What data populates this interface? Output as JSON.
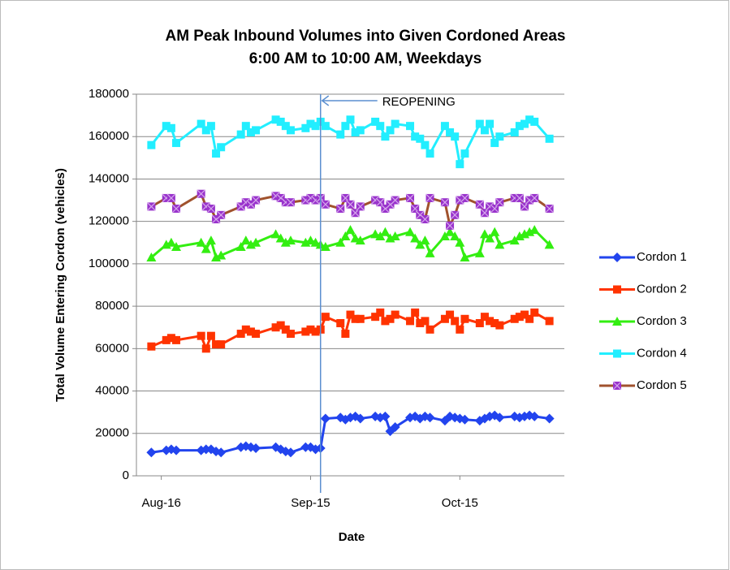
{
  "chart_data": {
    "type": "line",
    "title": [
      "AM Peak Inbound Volumes into Given Cordoned Areas",
      "6:00 AM to 10:00 AM, Weekdays"
    ],
    "x_label": "Date",
    "y_label": "Total Volume Entering Cordon (vehicles)",
    "x": [
      "08-14",
      "08-17",
      "08-18",
      "08-19",
      "08-24",
      "08-25",
      "08-26",
      "08-27",
      "08-28",
      "09-01",
      "09-02",
      "09-03",
      "09-04",
      "09-08",
      "09-09",
      "09-10",
      "09-11",
      "09-14",
      "09-15",
      "09-16",
      "09-17",
      "09-18",
      "09-21",
      "09-22",
      "09-23",
      "09-24",
      "09-25",
      "09-28",
      "09-29",
      "09-30",
      "10-01",
      "10-02",
      "10-05",
      "10-06",
      "10-07",
      "10-08",
      "10-09",
      "10-12",
      "10-13",
      "10-14",
      "10-15",
      "10-16",
      "10-19",
      "10-20",
      "10-21",
      "10-22",
      "10-23",
      "10-26",
      "10-27",
      "10-28",
      "10-29",
      "10-30",
      "11-02"
    ],
    "series": [
      {
        "name": "Cordon 1",
        "color": "#2244ee",
        "marker": "diamond",
        "values": [
          11000,
          12000,
          12500,
          12000,
          12000,
          12500,
          12500,
          11500,
          11000,
          13500,
          14000,
          13500,
          13000,
          13500,
          12500,
          11500,
          11000,
          13500,
          13500,
          12500,
          13000,
          27000,
          27500,
          26500,
          27500,
          28000,
          27000,
          28000,
          27500,
          28000,
          21000,
          23000,
          27500,
          28000,
          27000,
          28000,
          27500,
          26000,
          28000,
          27500,
          27000,
          26500,
          26000,
          27000,
          28000,
          28500,
          27500,
          28000,
          27500,
          28000,
          28500,
          28000,
          27000
        ]
      },
      {
        "name": "Cordon 2",
        "color": "#ff3300",
        "marker": "square",
        "values": [
          61000,
          64000,
          65000,
          64000,
          66000,
          60000,
          66000,
          62000,
          62000,
          67000,
          69000,
          68000,
          67000,
          70000,
          71000,
          69000,
          67000,
          68000,
          69000,
          68000,
          69000,
          75000,
          72000,
          67000,
          76000,
          74000,
          74000,
          75000,
          77000,
          73000,
          74000,
          76000,
          73000,
          77000,
          72000,
          73000,
          69000,
          74000,
          76000,
          73000,
          69000,
          74000,
          72000,
          75000,
          73000,
          72000,
          71000,
          74000,
          75000,
          76000,
          74000,
          77000,
          73000
        ]
      },
      {
        "name": "Cordon 3",
        "color": "#33ee11",
        "marker": "triangle",
        "values": [
          103000,
          109000,
          110000,
          108000,
          110000,
          107000,
          111000,
          103000,
          104000,
          108000,
          111000,
          109000,
          110000,
          114000,
          112000,
          110000,
          111000,
          110000,
          111000,
          110000,
          109000,
          108000,
          110000,
          113000,
          116000,
          112000,
          111000,
          114000,
          113000,
          115000,
          112000,
          113000,
          115000,
          112000,
          109000,
          111000,
          105000,
          113000,
          115000,
          113000,
          110000,
          103000,
          105000,
          114000,
          112000,
          115000,
          109000,
          111000,
          113000,
          114000,
          115000,
          116000,
          109000
        ]
      },
      {
        "name": "Cordon 4",
        "color": "#22eeff",
        "marker": "square",
        "values": [
          156000,
          165000,
          164000,
          157000,
          166000,
          163000,
          165000,
          152000,
          155000,
          161000,
          165000,
          162000,
          163000,
          168000,
          167000,
          165000,
          163000,
          164000,
          166000,
          165000,
          167000,
          165000,
          161000,
          165000,
          168000,
          162000,
          163000,
          167000,
          165000,
          160000,
          163000,
          166000,
          165000,
          160000,
          159000,
          156000,
          152000,
          165000,
          162000,
          160000,
          147000,
          152000,
          166000,
          163000,
          166000,
          157000,
          160000,
          162000,
          165000,
          166000,
          168000,
          167000,
          159000
        ]
      },
      {
        "name": "Cordon 5",
        "color": "#9933cc",
        "line_color": "#a0522d",
        "marker": "square-x",
        "values": [
          127000,
          131000,
          131000,
          126000,
          133000,
          127000,
          126000,
          121000,
          123000,
          127000,
          129000,
          128000,
          130000,
          132000,
          131000,
          129000,
          129000,
          130000,
          131000,
          130000,
          131000,
          128000,
          126000,
          131000,
          128000,
          124000,
          127000,
          130000,
          129000,
          126000,
          128000,
          130000,
          131000,
          126000,
          123000,
          121000,
          131000,
          129000,
          118000,
          123000,
          130000,
          131000,
          128000,
          124000,
          127000,
          126000,
          129000,
          131000,
          131000,
          127000,
          130000,
          131000,
          126000
        ]
      }
    ],
    "xlim": [
      "08-11",
      "11-05"
    ],
    "xticks": [
      {
        "value": "08-16",
        "label": "Aug-16"
      },
      {
        "value": "09-15",
        "label": "Sep-15"
      },
      {
        "value": "10-15",
        "label": "Oct-15"
      }
    ],
    "ylim": [
      0,
      180000
    ],
    "yticks": [
      0,
      20000,
      40000,
      60000,
      80000,
      100000,
      120000,
      140000,
      160000,
      180000
    ],
    "grid": true,
    "legend": "right",
    "annotation": {
      "text": "REOPENING",
      "x": "09-17",
      "color": "#5b8fd0"
    }
  }
}
